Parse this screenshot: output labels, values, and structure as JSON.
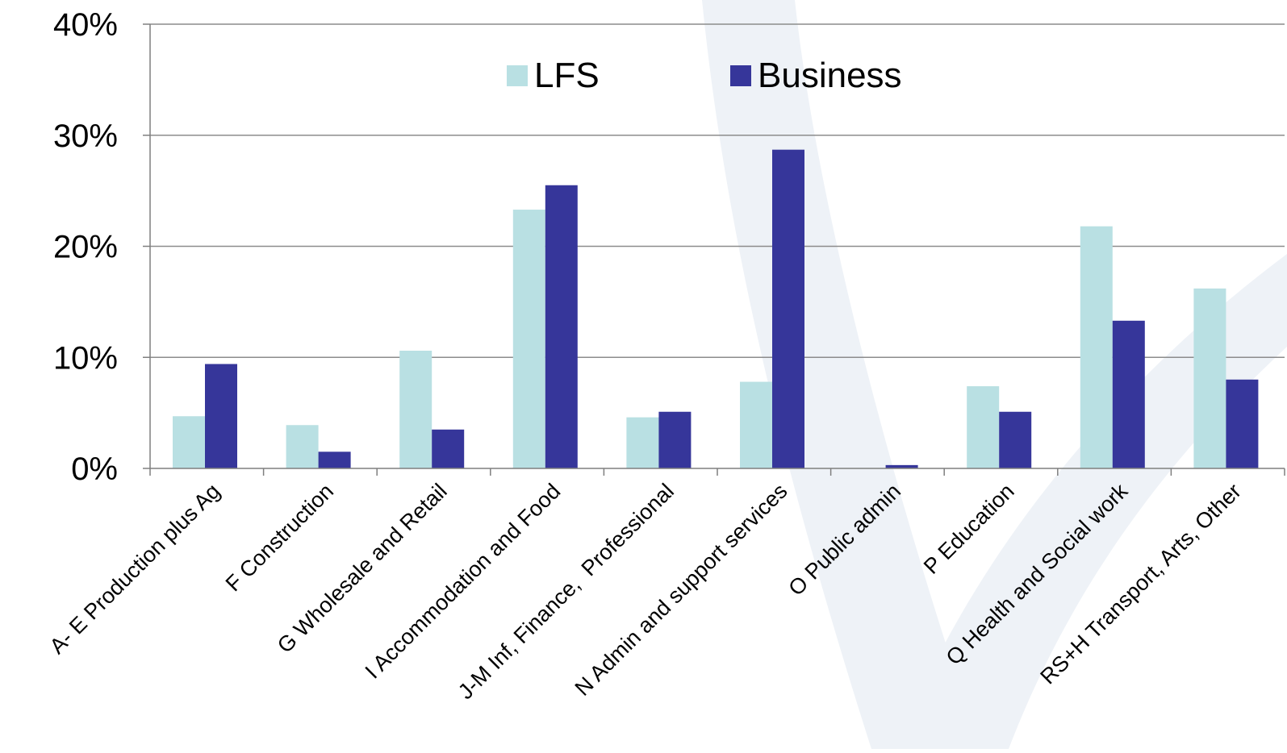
{
  "chart_data": {
    "type": "bar",
    "categories": [
      "A- E Production plus Ag",
      "F Construction",
      "G Wholesale and Retail",
      "I Accommodation and Food",
      "J-M Inf, Finance,  Professional",
      "N Admin and support services",
      "O Public admin",
      "P Education",
      "Q Health and Social work",
      "RS+H Transport, Arts, Other"
    ],
    "series": [
      {
        "name": "LFS",
        "color": "#b9e0e3",
        "values": [
          4.7,
          3.9,
          10.6,
          23.3,
          4.6,
          7.8,
          0.0,
          7.4,
          21.8,
          16.2
        ]
      },
      {
        "name": "Business",
        "color": "#36369a",
        "values": [
          9.4,
          1.5,
          3.5,
          25.5,
          5.1,
          28.7,
          0.3,
          5.1,
          13.3,
          8.0
        ]
      }
    ],
    "ylim": [
      0,
      40
    ],
    "yticks": [
      "0%",
      "10%",
      "20%",
      "30%",
      "40%"
    ],
    "ytick_values": [
      0,
      10,
      20,
      30,
      40
    ],
    "grid": true,
    "legend_placement": "top-center",
    "xlabel": "",
    "ylabel": ""
  },
  "colors": {
    "axis": "#7f7f7f",
    "grid": "#8c8c8c",
    "watermark": "#eef2f7"
  }
}
